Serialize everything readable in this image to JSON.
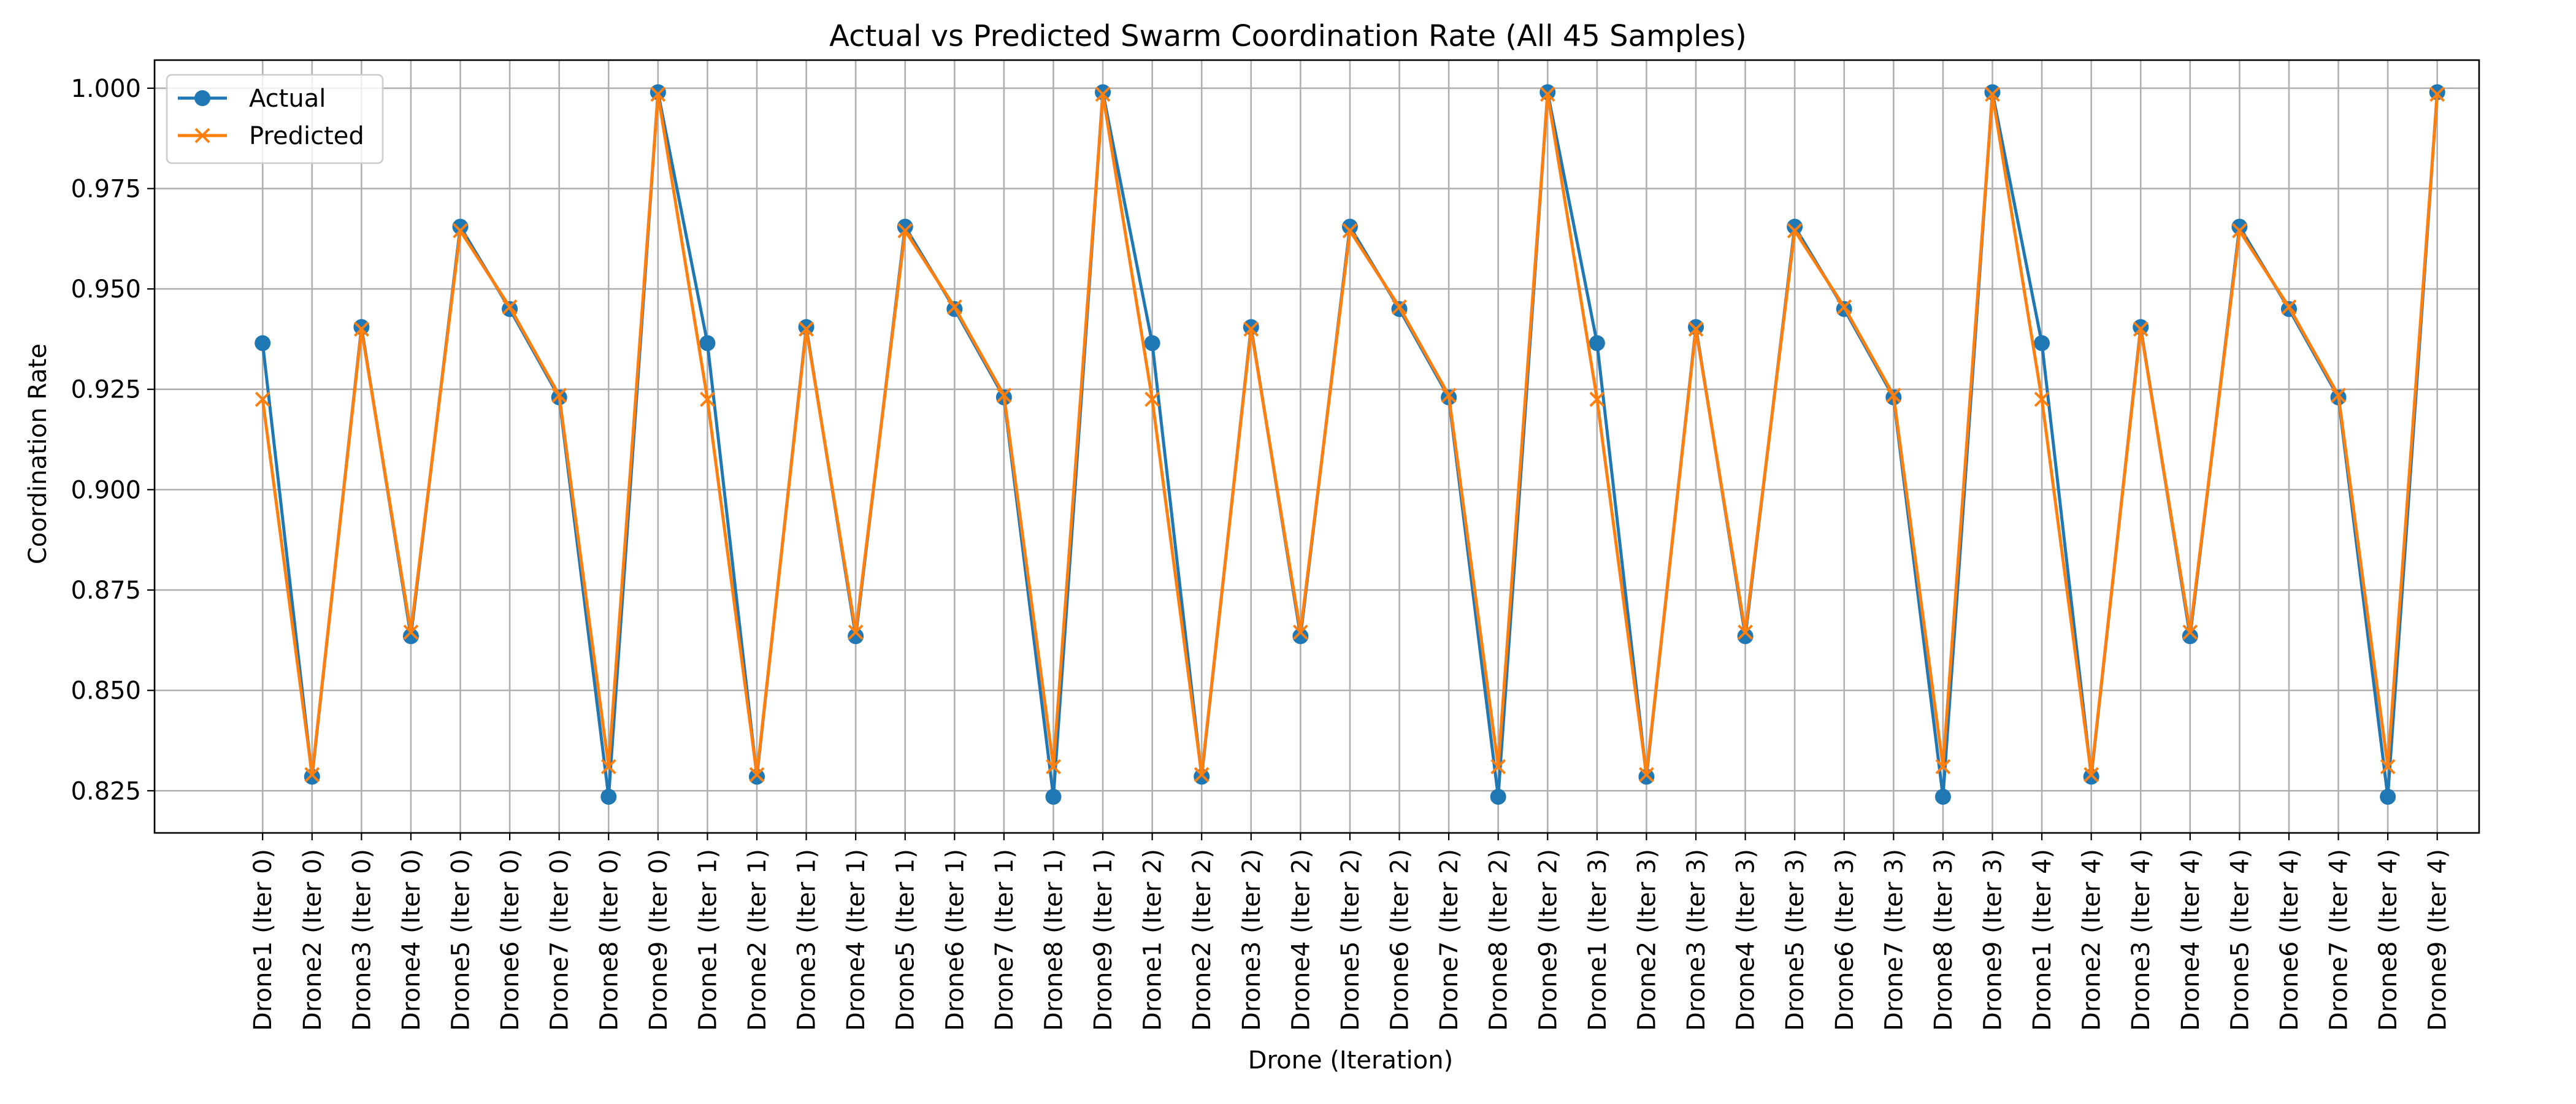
{
  "chart_data": {
    "type": "line",
    "title": "Actual vs Predicted Swarm Coordination Rate (All 45 Samples)",
    "xlabel": "Drone (Iteration)",
    "ylabel": "Coordination Rate",
    "categories": [
      "Drone1 (Iter 0)",
      "Drone2 (Iter 0)",
      "Drone3 (Iter 0)",
      "Drone4 (Iter 0)",
      "Drone5 (Iter 0)",
      "Drone6 (Iter 0)",
      "Drone7 (Iter 0)",
      "Drone8 (Iter 0)",
      "Drone9 (Iter 0)",
      "Drone1 (Iter 1)",
      "Drone2 (Iter 1)",
      "Drone3 (Iter 1)",
      "Drone4 (Iter 1)",
      "Drone5 (Iter 1)",
      "Drone6 (Iter 1)",
      "Drone7 (Iter 1)",
      "Drone8 (Iter 1)",
      "Drone9 (Iter 1)",
      "Drone1 (Iter 2)",
      "Drone2 (Iter 2)",
      "Drone3 (Iter 2)",
      "Drone4 (Iter 2)",
      "Drone5 (Iter 2)",
      "Drone6 (Iter 2)",
      "Drone7 (Iter 2)",
      "Drone8 (Iter 2)",
      "Drone9 (Iter 2)",
      "Drone1 (Iter 3)",
      "Drone2 (Iter 3)",
      "Drone3 (Iter 3)",
      "Drone4 (Iter 3)",
      "Drone5 (Iter 3)",
      "Drone6 (Iter 3)",
      "Drone7 (Iter 3)",
      "Drone8 (Iter 3)",
      "Drone9 (Iter 3)",
      "Drone1 (Iter 4)",
      "Drone2 (Iter 4)",
      "Drone3 (Iter 4)",
      "Drone4 (Iter 4)",
      "Drone5 (Iter 4)",
      "Drone6 (Iter 4)",
      "Drone7 (Iter 4)",
      "Drone8 (Iter 4)",
      "Drone9 (Iter 4)"
    ],
    "series": [
      {
        "name": "Actual",
        "color": "#1f77b4",
        "marker": "circle",
        "values": [
          0.9365,
          0.8285,
          0.9405,
          0.8635,
          0.9655,
          0.945,
          0.923,
          0.8235,
          0.999,
          0.9365,
          0.8285,
          0.9405,
          0.8635,
          0.9655,
          0.945,
          0.923,
          0.8235,
          0.999,
          0.9365,
          0.8285,
          0.9405,
          0.8635,
          0.9655,
          0.945,
          0.923,
          0.8235,
          0.999,
          0.9365,
          0.8285,
          0.9405,
          0.8635,
          0.9655,
          0.945,
          0.923,
          0.8235,
          0.999,
          0.9365,
          0.8285,
          0.9405,
          0.8635,
          0.9655,
          0.945,
          0.923,
          0.8235,
          0.999
        ]
      },
      {
        "name": "Predicted",
        "color": "#ff7f0e",
        "marker": "x",
        "values": [
          0.9225,
          0.829,
          0.94,
          0.8645,
          0.9645,
          0.9455,
          0.9235,
          0.831,
          0.9985,
          0.9225,
          0.829,
          0.94,
          0.8645,
          0.9645,
          0.9455,
          0.9235,
          0.831,
          0.9985,
          0.9225,
          0.829,
          0.94,
          0.8645,
          0.9645,
          0.9455,
          0.9235,
          0.831,
          0.9985,
          0.9225,
          0.829,
          0.94,
          0.8645,
          0.9645,
          0.9455,
          0.9235,
          0.831,
          0.9985,
          0.9225,
          0.829,
          0.94,
          0.8645,
          0.9645,
          0.9455,
          0.9235,
          0.831,
          0.9985
        ]
      }
    ],
    "yticks": [
      "0.825",
      "0.850",
      "0.875",
      "0.900",
      "0.925",
      "0.950",
      "0.975",
      "1.000"
    ],
    "ylim": [
      0.8145,
      1.007
    ],
    "grid": true,
    "legend": "top-left"
  }
}
